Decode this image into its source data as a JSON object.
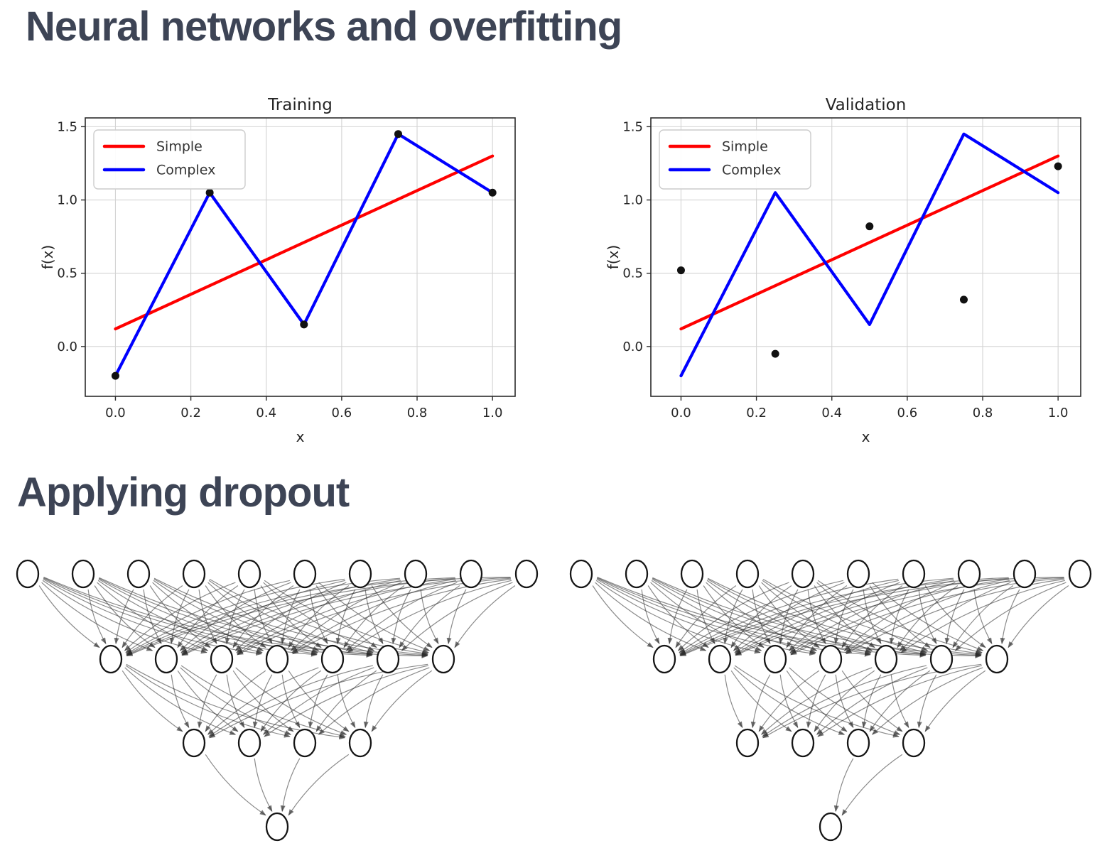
{
  "headings": {
    "main": "Neural networks and overfitting",
    "dropout": "Applying dropout"
  },
  "theme": {
    "heading_color": "#3d4455",
    "background": "#ffffff",
    "axis_color": "#2b2b2b",
    "grid_color": "#d3d3d3",
    "point_color": "#111111",
    "edge_color": "#2b2b2b"
  },
  "chart_data": [
    {
      "type": "line",
      "title": "Training",
      "xlabel": "x",
      "ylabel": "f(x)",
      "xlim": [
        -0.08,
        1.06
      ],
      "ylim": [
        -0.34,
        1.56
      ],
      "xticks": [
        0.0,
        0.2,
        0.4,
        0.6,
        0.8,
        1.0
      ],
      "yticks": [
        0.0,
        0.5,
        1.0,
        1.5
      ],
      "grid": true,
      "legend_position": "upper left",
      "series": [
        {
          "name": "Simple",
          "color": "#ff0000",
          "x": [
            0.0,
            1.0
          ],
          "y": [
            0.12,
            1.3
          ]
        },
        {
          "name": "Complex",
          "color": "#0000ff",
          "x": [
            0.0,
            0.25,
            0.5,
            0.75,
            1.0
          ],
          "y": [
            -0.2,
            1.05,
            0.15,
            1.45,
            1.05
          ]
        }
      ],
      "points": [
        [
          0.0,
          -0.2
        ],
        [
          0.25,
          1.05
        ],
        [
          0.5,
          0.15
        ],
        [
          0.75,
          1.45
        ],
        [
          1.0,
          1.05
        ]
      ]
    },
    {
      "type": "line",
      "title": "Validation",
      "xlabel": "x",
      "ylabel": "f(x)",
      "xlim": [
        -0.08,
        1.06
      ],
      "ylim": [
        -0.34,
        1.56
      ],
      "xticks": [
        0.0,
        0.2,
        0.4,
        0.6,
        0.8,
        1.0
      ],
      "yticks": [
        0.0,
        0.5,
        1.0,
        1.5
      ],
      "grid": true,
      "legend_position": "upper left",
      "series": [
        {
          "name": "Simple",
          "color": "#ff0000",
          "x": [
            0.0,
            1.0
          ],
          "y": [
            0.12,
            1.3
          ]
        },
        {
          "name": "Complex",
          "color": "#0000ff",
          "x": [
            0.0,
            0.25,
            0.5,
            0.75,
            1.0
          ],
          "y": [
            -0.2,
            1.05,
            0.15,
            1.45,
            1.05
          ]
        }
      ],
      "points": [
        [
          0.0,
          0.52
        ],
        [
          0.25,
          -0.05
        ],
        [
          0.5,
          0.82
        ],
        [
          0.75,
          0.32
        ],
        [
          1.0,
          1.23
        ]
      ]
    }
  ],
  "networks": [
    {
      "name": "fully-connected",
      "layers": [
        10,
        7,
        4,
        1
      ],
      "connections": [
        {
          "type": "full"
        },
        {
          "type": "full"
        },
        {
          "type": "full"
        }
      ]
    },
    {
      "name": "with-dropout",
      "layers": [
        10,
        7,
        4,
        1
      ],
      "connections": [
        {
          "type": "full"
        },
        {
          "type": "full",
          "skip_sources": [
            0
          ]
        },
        {
          "type": "full",
          "keep_sources": [
            2,
            3
          ]
        }
      ]
    }
  ]
}
